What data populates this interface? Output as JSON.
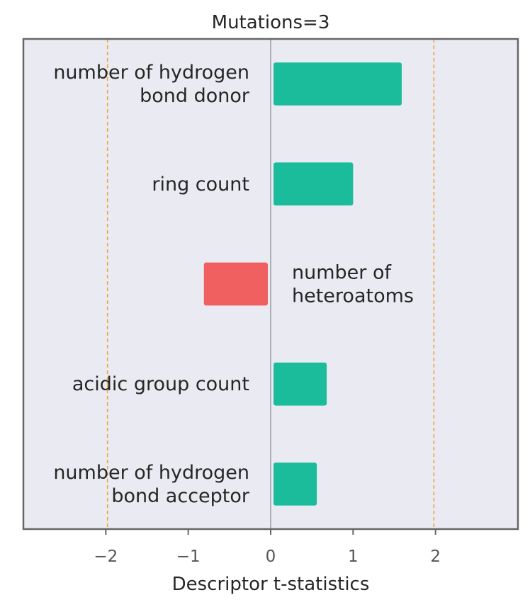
{
  "chart_data": {
    "type": "bar",
    "orientation": "horizontal",
    "title": "Mutations=3",
    "xlabel": "Descriptor t-statistics",
    "ylabel": "",
    "xlim": [
      -3.0,
      3.0
    ],
    "xticks": [
      -2,
      -1,
      0,
      1,
      2
    ],
    "xtick_labels": [
      "−2",
      "−1",
      "0",
      "1",
      "2"
    ],
    "reference_lines": [
      -1.98,
      1.98
    ],
    "zero_line": 0,
    "grid": false,
    "categories": [
      [
        "number of hydrogen",
        "bond donor"
      ],
      [
        "ring count"
      ],
      [
        "number of",
        "heteroatoms"
      ],
      [
        "acidic group count"
      ],
      [
        "number of hydrogen",
        "bond acceptor"
      ]
    ],
    "values": [
      1.59,
      1.0,
      -0.81,
      0.68,
      0.56
    ]
  },
  "colors": {
    "positive": "#1bbc9b",
    "negative": "#f06060",
    "plot_background": "#eaeaf2",
    "frame": "#666666",
    "reference_line": "#f0a030",
    "zero_line": "#888888"
  }
}
